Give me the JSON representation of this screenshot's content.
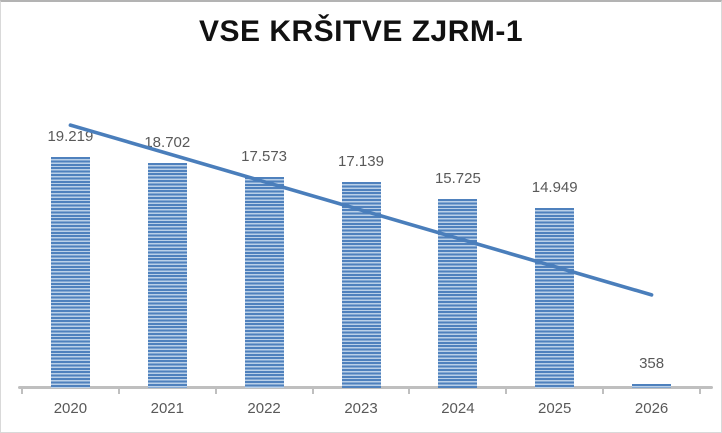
{
  "frame": {
    "background": "#ffffff",
    "border_top_color": "#b3b3b3",
    "border_color": "#d9d9d9"
  },
  "chart_data": {
    "type": "bar",
    "title": "VSE KRŠITVE ZJRM-1",
    "categories": [
      "2020",
      "2021",
      "2022",
      "2023",
      "2024",
      "2025",
      "2026"
    ],
    "values": [
      19219,
      18702,
      17573,
      17139,
      15725,
      14949,
      358
    ],
    "data_labels": [
      "19.219",
      "18.702",
      "17.573",
      "17.139",
      "15.725",
      "14.949",
      "358"
    ],
    "xlabel": "",
    "ylabel": "",
    "ylim": [
      0,
      23000
    ],
    "grid": false,
    "legend": false,
    "y_axis": "hidden",
    "trendline": {
      "type": "linear",
      "start_value": 21874,
      "end_value": 7745
    },
    "colors": {
      "bar_stripe_dark": "#4f81bd",
      "bar_stripe_light": "#bad0e8",
      "trendline": "#4a7ebb",
      "axis": "#bfbfbf",
      "data_label": "#595959",
      "category_label": "#595959",
      "title": "#111111"
    }
  }
}
